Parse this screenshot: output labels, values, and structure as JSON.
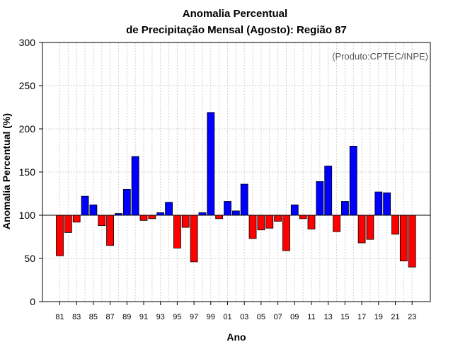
{
  "chart_data": {
    "type": "bar",
    "title": "Anomalia Percentual",
    "subtitle": "de Precipitação Mensal (Agosto): Região 87",
    "xlabel": "Ano",
    "ylabel": "Anomalia Percentual (%)",
    "annotation": "(Produto:CPTEC/INPE)",
    "baseline": 100,
    "ylim": [
      0,
      300
    ],
    "yticks": [
      0,
      50,
      100,
      150,
      200,
      250,
      300
    ],
    "grid": true,
    "categories": [
      "81",
      "82",
      "83",
      "84",
      "85",
      "86",
      "87",
      "88",
      "89",
      "90",
      "91",
      "92",
      "93",
      "94",
      "95",
      "96",
      "97",
      "98",
      "99",
      "00",
      "01",
      "02",
      "03",
      "04",
      "05",
      "06",
      "07",
      "08",
      "09",
      "10",
      "11",
      "12",
      "13",
      "14",
      "15",
      "16",
      "17",
      "18",
      "19",
      "20",
      "21",
      "22",
      "23"
    ],
    "xtick_labels": [
      "81",
      "83",
      "85",
      "87",
      "89",
      "91",
      "93",
      "95",
      "97",
      "99",
      "01",
      "03",
      "05",
      "07",
      "09",
      "11",
      "13",
      "15",
      "17",
      "19",
      "21",
      "23"
    ],
    "values": [
      53,
      80,
      92,
      122,
      112,
      88,
      65,
      102,
      130,
      168,
      94,
      96,
      103,
      115,
      62,
      86,
      46,
      103,
      219,
      96,
      116,
      105,
      136,
      73,
      83,
      85,
      93,
      59,
      112,
      96,
      84,
      139,
      157,
      81,
      116,
      180,
      68,
      72,
      127,
      126,
      78,
      47,
      40
    ],
    "colors": {
      "above": "#0000ff",
      "below": "#ff0000",
      "bar_edge": "#000000"
    }
  }
}
